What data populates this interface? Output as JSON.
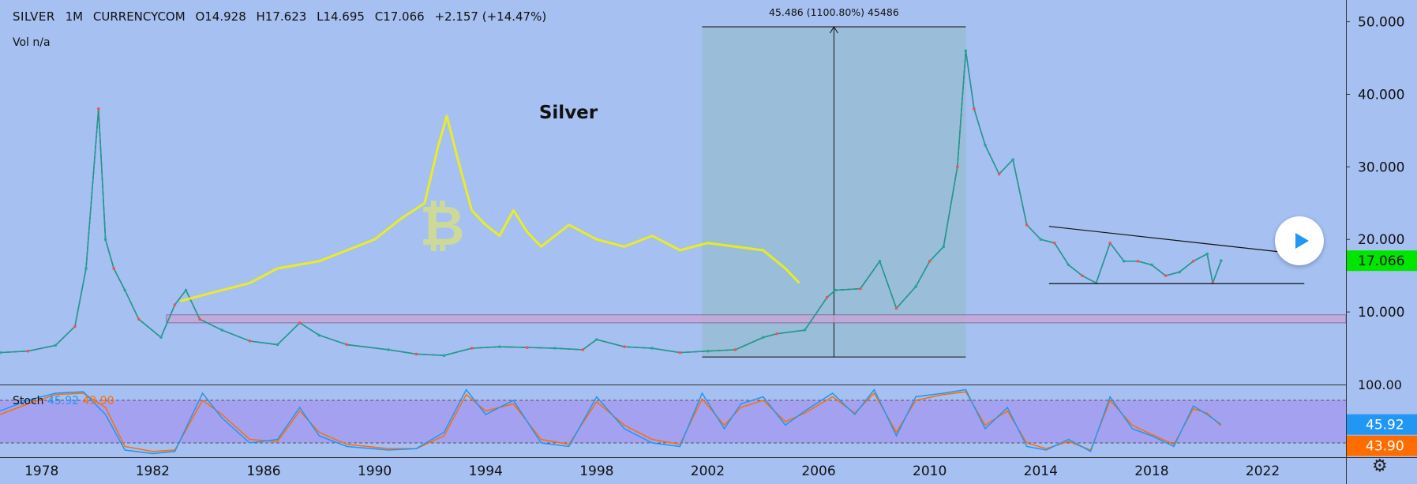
{
  "header": {
    "symbol": "SILVER",
    "interval": "1M",
    "exchange": "CURRENCYCOM",
    "open": "O14.928",
    "high": "H17.623",
    "low": "L14.695",
    "close": "C17.066",
    "change": "+2.157 (+14.47%)",
    "volume": "Vol  n/a"
  },
  "annotations": {
    "title_text": "Silver",
    "measure_label": "45.486 (1100.80%) 45486"
  },
  "price_axis": {
    "ticks": [
      "50.000",
      "40.000",
      "30.000",
      "20.000",
      "10.000"
    ],
    "last_price": "17.066",
    "last_price_color": "#00e600"
  },
  "stoch": {
    "name": "Stoch",
    "k_value": "45.92",
    "d_value": "43.90",
    "k_color": "#2196f3",
    "d_color": "#ff6d00",
    "axis_top": "100.00",
    "upper_band": 80,
    "lower_band": 20
  },
  "time_axis": {
    "labels": [
      "1978",
      "1982",
      "1986",
      "1990",
      "1994",
      "1998",
      "2002",
      "2006",
      "2010",
      "2014",
      "2018",
      "2022"
    ]
  },
  "icons": {
    "play": "play-icon",
    "settings": "gear-icon",
    "bitcoin": "bitcoin-icon"
  },
  "chart_data": {
    "type": "line",
    "title": "Silver",
    "x_range": [
      1976.5,
      2025
    ],
    "ylim": [
      0,
      53
    ],
    "ylabel": "",
    "xlabel": "",
    "grid": false,
    "series": [
      {
        "name": "SILVER",
        "color": "#26a69a",
        "x": [
          1976.5,
          1977.5,
          1978.5,
          1979.2,
          1979.6,
          1980.05,
          1980.3,
          1980.6,
          1981.0,
          1981.5,
          1982.3,
          1982.8,
          1983.2,
          1983.7,
          1984.5,
          1985.5,
          1986.5,
          1987.3,
          1988.0,
          1989.0,
          1990.5,
          1991.5,
          1992.5,
          1993.5,
          1994.5,
          1995.5,
          1996.5,
          1997.5,
          1998.0,
          1999.0,
          2000.0,
          2001.0,
          2002.0,
          2003.0,
          2004.0,
          2004.5,
          2005.5,
          2006.3,
          2006.6,
          2007.5,
          2008.2,
          2008.8,
          2009.5,
          2010.0,
          2010.5,
          2011.0,
          2011.3,
          2011.6,
          2012.0,
          2012.5,
          2013.0,
          2013.5,
          2014.0,
          2014.5,
          2015.0,
          2015.5,
          2016.0,
          2016.5,
          2017.0,
          2017.5,
          2018.0,
          2018.5,
          2019.0,
          2019.5,
          2020.0,
          2020.2,
          2020.5
        ],
        "y": [
          4.4,
          4.6,
          5.4,
          8.0,
          16.0,
          38.0,
          20.0,
          16.0,
          13.0,
          9.0,
          6.5,
          11.0,
          13.0,
          9.0,
          7.5,
          6.0,
          5.5,
          8.5,
          6.8,
          5.5,
          4.8,
          4.2,
          4.0,
          5.0,
          5.2,
          5.1,
          5.0,
          4.8,
          6.2,
          5.2,
          5.0,
          4.4,
          4.6,
          4.8,
          6.5,
          7.0,
          7.5,
          12.0,
          13.0,
          13.2,
          17.0,
          10.5,
          13.5,
          17.0,
          19.0,
          30.0,
          46.0,
          38.0,
          33.0,
          29.0,
          31.0,
          22.0,
          20.0,
          19.5,
          16.5,
          15.0,
          14.0,
          19.5,
          17.0,
          17.0,
          16.5,
          15.0,
          15.5,
          17.0,
          18.0,
          14.0,
          17.066
        ]
      },
      {
        "name": "Bitcoin overlay",
        "color": "#f5f500",
        "x": [
          1983.0,
          1984.0,
          1985.5,
          1986.5,
          1988.0,
          1989.0,
          1990.0,
          1991.0,
          1991.8,
          1992.3,
          1992.6,
          1993.0,
          1993.5,
          1994.0,
          1994.5,
          1995.0,
          1995.5,
          1996.0,
          1997.0,
          1998.0,
          1999.0,
          2000.0,
          2001.0,
          2002.0,
          2003.0,
          2004.0,
          2004.8,
          2005.3
        ],
        "y": [
          11.5,
          12.5,
          14.0,
          16.0,
          17.0,
          18.5,
          20.0,
          23.0,
          25.0,
          33.0,
          37.0,
          31.0,
          24.0,
          22.0,
          20.5,
          24.0,
          21.0,
          19.0,
          22.0,
          20.0,
          19.0,
          20.5,
          18.5,
          19.5,
          19.0,
          18.5,
          16.0,
          14.0
        ]
      }
    ],
    "support_zone": [
      8.5,
      9.6
    ],
    "measure": {
      "x_start": 2001.8,
      "x_end": 2011.3,
      "y_low": 3.8,
      "y_high": 49.3,
      "label": "45.486 (1100.80%) 45486"
    },
    "trendlines": [
      {
        "x": [
          2014.3,
          2023.3
        ],
        "y": [
          21.8,
          18.0
        ]
      },
      {
        "x": [
          2014.3,
          2023.5
        ],
        "y": [
          13.9,
          13.9
        ]
      }
    ],
    "stochastic": {
      "x": [
        1976.5,
        1977.5,
        1978.5,
        1979.5,
        1980.3,
        1981.0,
        1982.0,
        1982.8,
        1983.8,
        1984.5,
        1985.5,
        1986.5,
        1987.3,
        1988.0,
        1989.0,
        1990.5,
        1991.5,
        1992.5,
        1993.3,
        1994.0,
        1995.0,
        1996.0,
        1997.0,
        1998.0,
        1999.0,
        2000.0,
        2001.0,
        2001.8,
        2002.6,
        2003.2,
        2004.0,
        2004.8,
        2005.5,
        2006.5,
        2007.3,
        2008.0,
        2008.8,
        2009.5,
        2010.5,
        2011.3,
        2012.0,
        2012.8,
        2013.5,
        2014.2,
        2015.0,
        2015.8,
        2016.5,
        2017.3,
        2018.0,
        2018.8,
        2019.5,
        2020.0,
        2020.5
      ],
      "k": [
        65,
        80,
        90,
        92,
        60,
        10,
        5,
        8,
        90,
        55,
        20,
        25,
        70,
        30,
        15,
        10,
        12,
        35,
        95,
        60,
        80,
        20,
        15,
        85,
        40,
        20,
        15,
        90,
        40,
        75,
        85,
        45,
        65,
        90,
        60,
        95,
        30,
        85,
        90,
        95,
        40,
        70,
        15,
        10,
        25,
        8,
        85,
        40,
        30,
        15,
        72,
        60,
        45.92
      ],
      "d": [
        60,
        75,
        88,
        90,
        70,
        15,
        8,
        10,
        80,
        60,
        25,
        22,
        65,
        35,
        18,
        12,
        12,
        30,
        88,
        65,
        75,
        25,
        18,
        78,
        45,
        25,
        18,
        82,
        45,
        70,
        80,
        50,
        62,
        85,
        62,
        90,
        35,
        80,
        88,
        92,
        45,
        65,
        20,
        12,
        22,
        10,
        80,
        45,
        32,
        18,
        68,
        62,
        43.9
      ]
    }
  }
}
